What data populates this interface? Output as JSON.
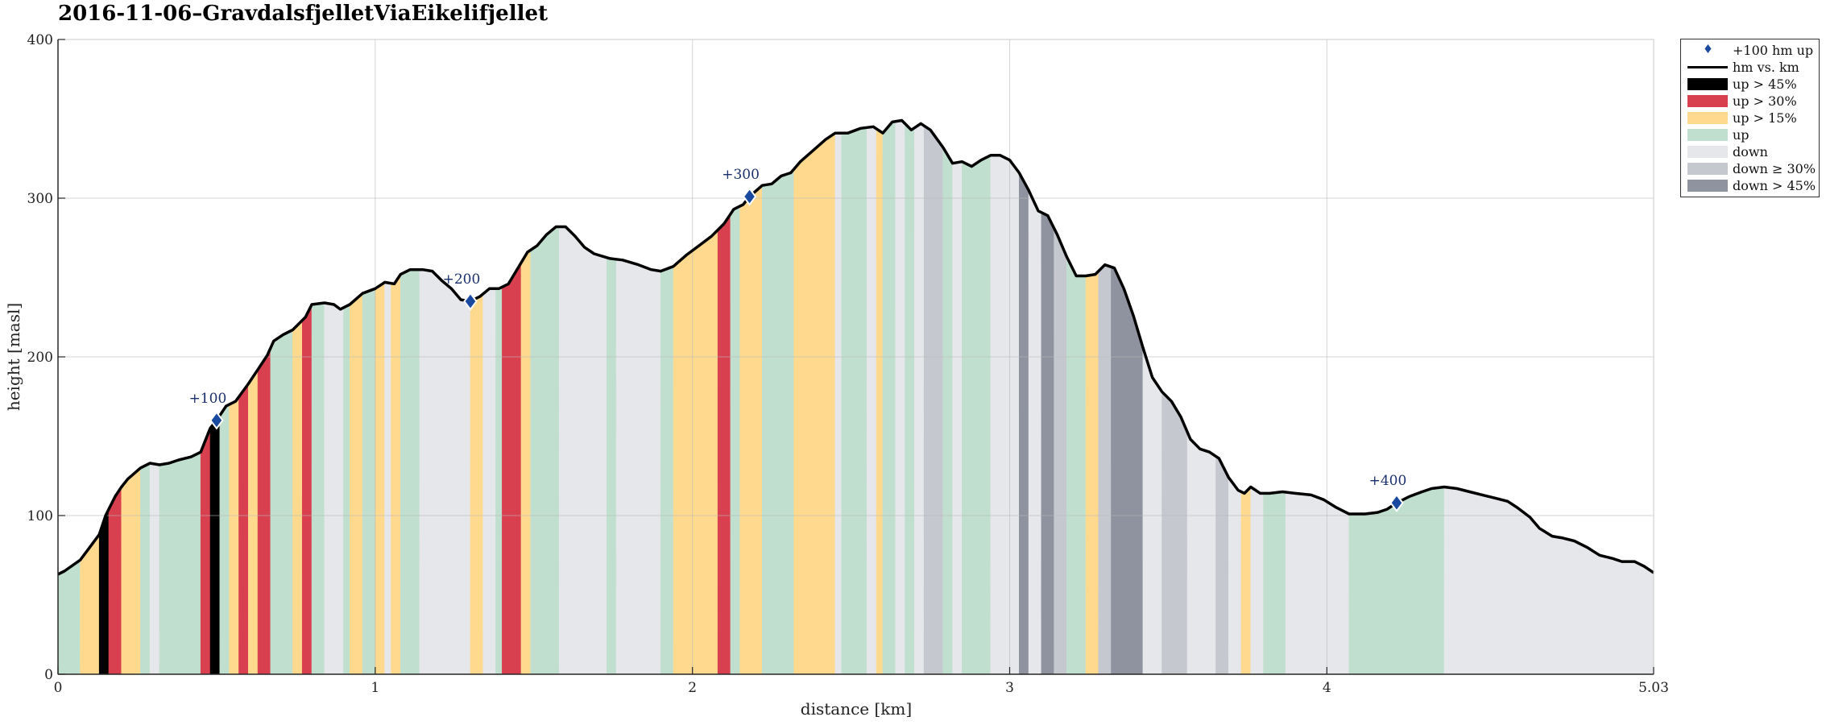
{
  "chart_data": {
    "type": "area",
    "title": "2016-11-06–GravdalsfjelletViaEikelifjellet",
    "xlabel": "distance [km]",
    "ylabel": "height [masl]",
    "xlim": [
      0,
      5.03
    ],
    "ylim": [
      0,
      400
    ],
    "xticks": [
      0,
      1,
      2,
      3,
      4,
      5.03
    ],
    "xtick_labels": [
      "0",
      "1",
      "2",
      "3",
      "4",
      "5.03"
    ],
    "yticks": [
      0,
      100,
      200,
      300,
      400
    ],
    "ytick_labels": [
      "0",
      "100",
      "200",
      "300",
      "400"
    ],
    "grid": true,
    "legend_position": "outside-top-right",
    "legend": [
      {
        "label": "+100 hm up",
        "kind": "marker",
        "color": "#1a4aa0"
      },
      {
        "label": "hm vs. km",
        "kind": "line",
        "color": "#000000"
      },
      {
        "label": "up > 45%",
        "kind": "patch",
        "color": "#000000"
      },
      {
        "label": "up > 30%",
        "kind": "patch",
        "color": "#d9404f"
      },
      {
        "label": "up > 15%",
        "kind": "patch",
        "color": "#fed98e"
      },
      {
        "label": "up",
        "kind": "patch",
        "color": "#c1dfcf"
      },
      {
        "label": "down",
        "kind": "patch",
        "color": "#e6e7ea"
      },
      {
        "label": "down ≥ 30%",
        "kind": "patch",
        "color": "#c6c8cf"
      },
      {
        "label": "down > 45%",
        "kind": "patch",
        "color": "#8f939f"
      }
    ],
    "category_colors": {
      "up45": "#000000",
      "up30": "#d9404f",
      "up15": "#fed98e",
      "up": "#c1dfcf",
      "down": "#e6e7ea",
      "down30": "#c6c8cf",
      "down45": "#8f939f"
    },
    "profile": [
      [
        0.0,
        63
      ],
      [
        0.02,
        65
      ],
      [
        0.07,
        72
      ],
      [
        0.1,
        80
      ],
      [
        0.13,
        88
      ],
      [
        0.15,
        100
      ],
      [
        0.18,
        112
      ],
      [
        0.2,
        118
      ],
      [
        0.22,
        123
      ],
      [
        0.26,
        130
      ],
      [
        0.29,
        133
      ],
      [
        0.32,
        132
      ],
      [
        0.35,
        133
      ],
      [
        0.38,
        135
      ],
      [
        0.42,
        137
      ],
      [
        0.45,
        140
      ],
      [
        0.48,
        155
      ],
      [
        0.5,
        160
      ],
      [
        0.53,
        169
      ],
      [
        0.56,
        172
      ],
      [
        0.6,
        183
      ],
      [
        0.63,
        192
      ],
      [
        0.66,
        201
      ],
      [
        0.68,
        210
      ],
      [
        0.71,
        214
      ],
      [
        0.74,
        217
      ],
      [
        0.78,
        225
      ],
      [
        0.8,
        233
      ],
      [
        0.84,
        234
      ],
      [
        0.87,
        233
      ],
      [
        0.89,
        230
      ],
      [
        0.92,
        233
      ],
      [
        0.96,
        240
      ],
      [
        1.0,
        243
      ],
      [
        1.03,
        247
      ],
      [
        1.06,
        246
      ],
      [
        1.08,
        252
      ],
      [
        1.11,
        255
      ],
      [
        1.15,
        255
      ],
      [
        1.18,
        254
      ],
      [
        1.21,
        248
      ],
      [
        1.24,
        243
      ],
      [
        1.27,
        236
      ],
      [
        1.3,
        235
      ],
      [
        1.33,
        238
      ],
      [
        1.36,
        243
      ],
      [
        1.39,
        243
      ],
      [
        1.42,
        246
      ],
      [
        1.45,
        256
      ],
      [
        1.48,
        266
      ],
      [
        1.51,
        270
      ],
      [
        1.54,
        277
      ],
      [
        1.57,
        282
      ],
      [
        1.6,
        282
      ],
      [
        1.63,
        276
      ],
      [
        1.66,
        269
      ],
      [
        1.69,
        265
      ],
      [
        1.74,
        262
      ],
      [
        1.78,
        261
      ],
      [
        1.83,
        258
      ],
      [
        1.87,
        255
      ],
      [
        1.9,
        254
      ],
      [
        1.94,
        257
      ],
      [
        1.98,
        264
      ],
      [
        2.02,
        270
      ],
      [
        2.06,
        276
      ],
      [
        2.1,
        284
      ],
      [
        2.13,
        293
      ],
      [
        2.16,
        296
      ],
      [
        2.18,
        301
      ],
      [
        2.22,
        308
      ],
      [
        2.25,
        309
      ],
      [
        2.28,
        314
      ],
      [
        2.31,
        316
      ],
      [
        2.34,
        323
      ],
      [
        2.38,
        330
      ],
      [
        2.42,
        337
      ],
      [
        2.45,
        341
      ],
      [
        2.49,
        341
      ],
      [
        2.53,
        344
      ],
      [
        2.57,
        345
      ],
      [
        2.6,
        341
      ],
      [
        2.63,
        348
      ],
      [
        2.66,
        349
      ],
      [
        2.69,
        343
      ],
      [
        2.72,
        347
      ],
      [
        2.75,
        343
      ],
      [
        2.79,
        332
      ],
      [
        2.82,
        322
      ],
      [
        2.85,
        323
      ],
      [
        2.88,
        320
      ],
      [
        2.91,
        324
      ],
      [
        2.94,
        327
      ],
      [
        2.97,
        327
      ],
      [
        3.0,
        324
      ],
      [
        3.03,
        316
      ],
      [
        3.06,
        305
      ],
      [
        3.09,
        292
      ],
      [
        3.12,
        289
      ],
      [
        3.15,
        277
      ],
      [
        3.18,
        263
      ],
      [
        3.21,
        251
      ],
      [
        3.24,
        251
      ],
      [
        3.27,
        252
      ],
      [
        3.3,
        258
      ],
      [
        3.33,
        256
      ],
      [
        3.36,
        243
      ],
      [
        3.39,
        226
      ],
      [
        3.42,
        206
      ],
      [
        3.45,
        187
      ],
      [
        3.48,
        178
      ],
      [
        3.51,
        172
      ],
      [
        3.54,
        162
      ],
      [
        3.57,
        148
      ],
      [
        3.6,
        142
      ],
      [
        3.63,
        140
      ],
      [
        3.66,
        136
      ],
      [
        3.69,
        124
      ],
      [
        3.72,
        116
      ],
      [
        3.74,
        114
      ],
      [
        3.76,
        118
      ],
      [
        3.79,
        114
      ],
      [
        3.82,
        114
      ],
      [
        3.86,
        115
      ],
      [
        3.9,
        114
      ],
      [
        3.95,
        113
      ],
      [
        3.99,
        110
      ],
      [
        4.03,
        105
      ],
      [
        4.07,
        101
      ],
      [
        4.12,
        101
      ],
      [
        4.16,
        102
      ],
      [
        4.19,
        104
      ],
      [
        4.22,
        108
      ],
      [
        4.26,
        112
      ],
      [
        4.3,
        115
      ],
      [
        4.33,
        117
      ],
      [
        4.37,
        118
      ],
      [
        4.41,
        117
      ],
      [
        4.45,
        115
      ],
      [
        4.49,
        113
      ],
      [
        4.53,
        111
      ],
      [
        4.57,
        109
      ],
      [
        4.6,
        105
      ],
      [
        4.64,
        99
      ],
      [
        4.67,
        92
      ],
      [
        4.71,
        87
      ],
      [
        4.74,
        86
      ],
      [
        4.78,
        84
      ],
      [
        4.82,
        80
      ],
      [
        4.86,
        75
      ],
      [
        4.9,
        73
      ],
      [
        4.93,
        71
      ],
      [
        4.97,
        71
      ],
      [
        5.0,
        68
      ],
      [
        5.03,
        64
      ]
    ],
    "segments": [
      [
        0.0,
        0.07,
        "up"
      ],
      [
        0.07,
        0.13,
        "up15"
      ],
      [
        0.13,
        0.16,
        "up45"
      ],
      [
        0.16,
        0.2,
        "up30"
      ],
      [
        0.2,
        0.26,
        "up15"
      ],
      [
        0.26,
        0.29,
        "up"
      ],
      [
        0.29,
        0.32,
        "down"
      ],
      [
        0.32,
        0.45,
        "up"
      ],
      [
        0.45,
        0.48,
        "up30"
      ],
      [
        0.48,
        0.51,
        "up45"
      ],
      [
        0.51,
        0.54,
        "up"
      ],
      [
        0.54,
        0.57,
        "up15"
      ],
      [
        0.57,
        0.6,
        "up30"
      ],
      [
        0.6,
        0.63,
        "up15"
      ],
      [
        0.63,
        0.67,
        "up30"
      ],
      [
        0.67,
        0.74,
        "up"
      ],
      [
        0.74,
        0.77,
        "up15"
      ],
      [
        0.77,
        0.8,
        "up30"
      ],
      [
        0.8,
        0.84,
        "up"
      ],
      [
        0.84,
        0.9,
        "down"
      ],
      [
        0.9,
        0.92,
        "up"
      ],
      [
        0.92,
        0.96,
        "up15"
      ],
      [
        0.96,
        1.0,
        "up"
      ],
      [
        1.0,
        1.03,
        "up15"
      ],
      [
        1.03,
        1.05,
        "down"
      ],
      [
        1.05,
        1.08,
        "up15"
      ],
      [
        1.08,
        1.14,
        "up"
      ],
      [
        1.14,
        1.3,
        "down"
      ],
      [
        1.3,
        1.34,
        "up15"
      ],
      [
        1.34,
        1.38,
        "down"
      ],
      [
        1.38,
        1.4,
        "up"
      ],
      [
        1.4,
        1.46,
        "up30"
      ],
      [
        1.46,
        1.49,
        "up15"
      ],
      [
        1.49,
        1.58,
        "up"
      ],
      [
        1.58,
        1.73,
        "down"
      ],
      [
        1.73,
        1.76,
        "up"
      ],
      [
        1.76,
        1.9,
        "down"
      ],
      [
        1.9,
        1.94,
        "up"
      ],
      [
        1.94,
        2.08,
        "up15"
      ],
      [
        2.08,
        2.12,
        "up30"
      ],
      [
        2.12,
        2.15,
        "up"
      ],
      [
        2.15,
        2.22,
        "up15"
      ],
      [
        2.22,
        2.32,
        "up"
      ],
      [
        2.32,
        2.45,
        "up15"
      ],
      [
        2.45,
        2.47,
        "down"
      ],
      [
        2.47,
        2.55,
        "up"
      ],
      [
        2.55,
        2.58,
        "down"
      ],
      [
        2.58,
        2.6,
        "up15"
      ],
      [
        2.6,
        2.64,
        "up"
      ],
      [
        2.64,
        2.67,
        "down"
      ],
      [
        2.67,
        2.7,
        "up"
      ],
      [
        2.7,
        2.73,
        "down"
      ],
      [
        2.73,
        2.79,
        "down30"
      ],
      [
        2.79,
        2.82,
        "up"
      ],
      [
        2.82,
        2.85,
        "down"
      ],
      [
        2.85,
        2.94,
        "up"
      ],
      [
        2.94,
        3.03,
        "down"
      ],
      [
        3.03,
        3.06,
        "down45"
      ],
      [
        3.06,
        3.1,
        "down"
      ],
      [
        3.1,
        3.14,
        "down45"
      ],
      [
        3.14,
        3.18,
        "down30"
      ],
      [
        3.18,
        3.24,
        "up"
      ],
      [
        3.24,
        3.28,
        "up15"
      ],
      [
        3.28,
        3.32,
        "down30"
      ],
      [
        3.32,
        3.42,
        "down45"
      ],
      [
        3.42,
        3.48,
        "down"
      ],
      [
        3.48,
        3.56,
        "down30"
      ],
      [
        3.56,
        3.65,
        "down"
      ],
      [
        3.65,
        3.69,
        "down30"
      ],
      [
        3.69,
        3.73,
        "down"
      ],
      [
        3.73,
        3.76,
        "up15"
      ],
      [
        3.76,
        3.8,
        "down"
      ],
      [
        3.8,
        3.87,
        "up"
      ],
      [
        3.87,
        4.07,
        "down"
      ],
      [
        4.07,
        4.37,
        "up"
      ],
      [
        4.37,
        5.03,
        "down"
      ]
    ],
    "markers": [
      {
        "x": 0.5,
        "y": 160,
        "label": "+100"
      },
      {
        "x": 1.3,
        "y": 235,
        "label": "+200"
      },
      {
        "x": 2.18,
        "y": 301,
        "label": "+300"
      },
      {
        "x": 4.22,
        "y": 108,
        "label": "+400"
      }
    ]
  }
}
